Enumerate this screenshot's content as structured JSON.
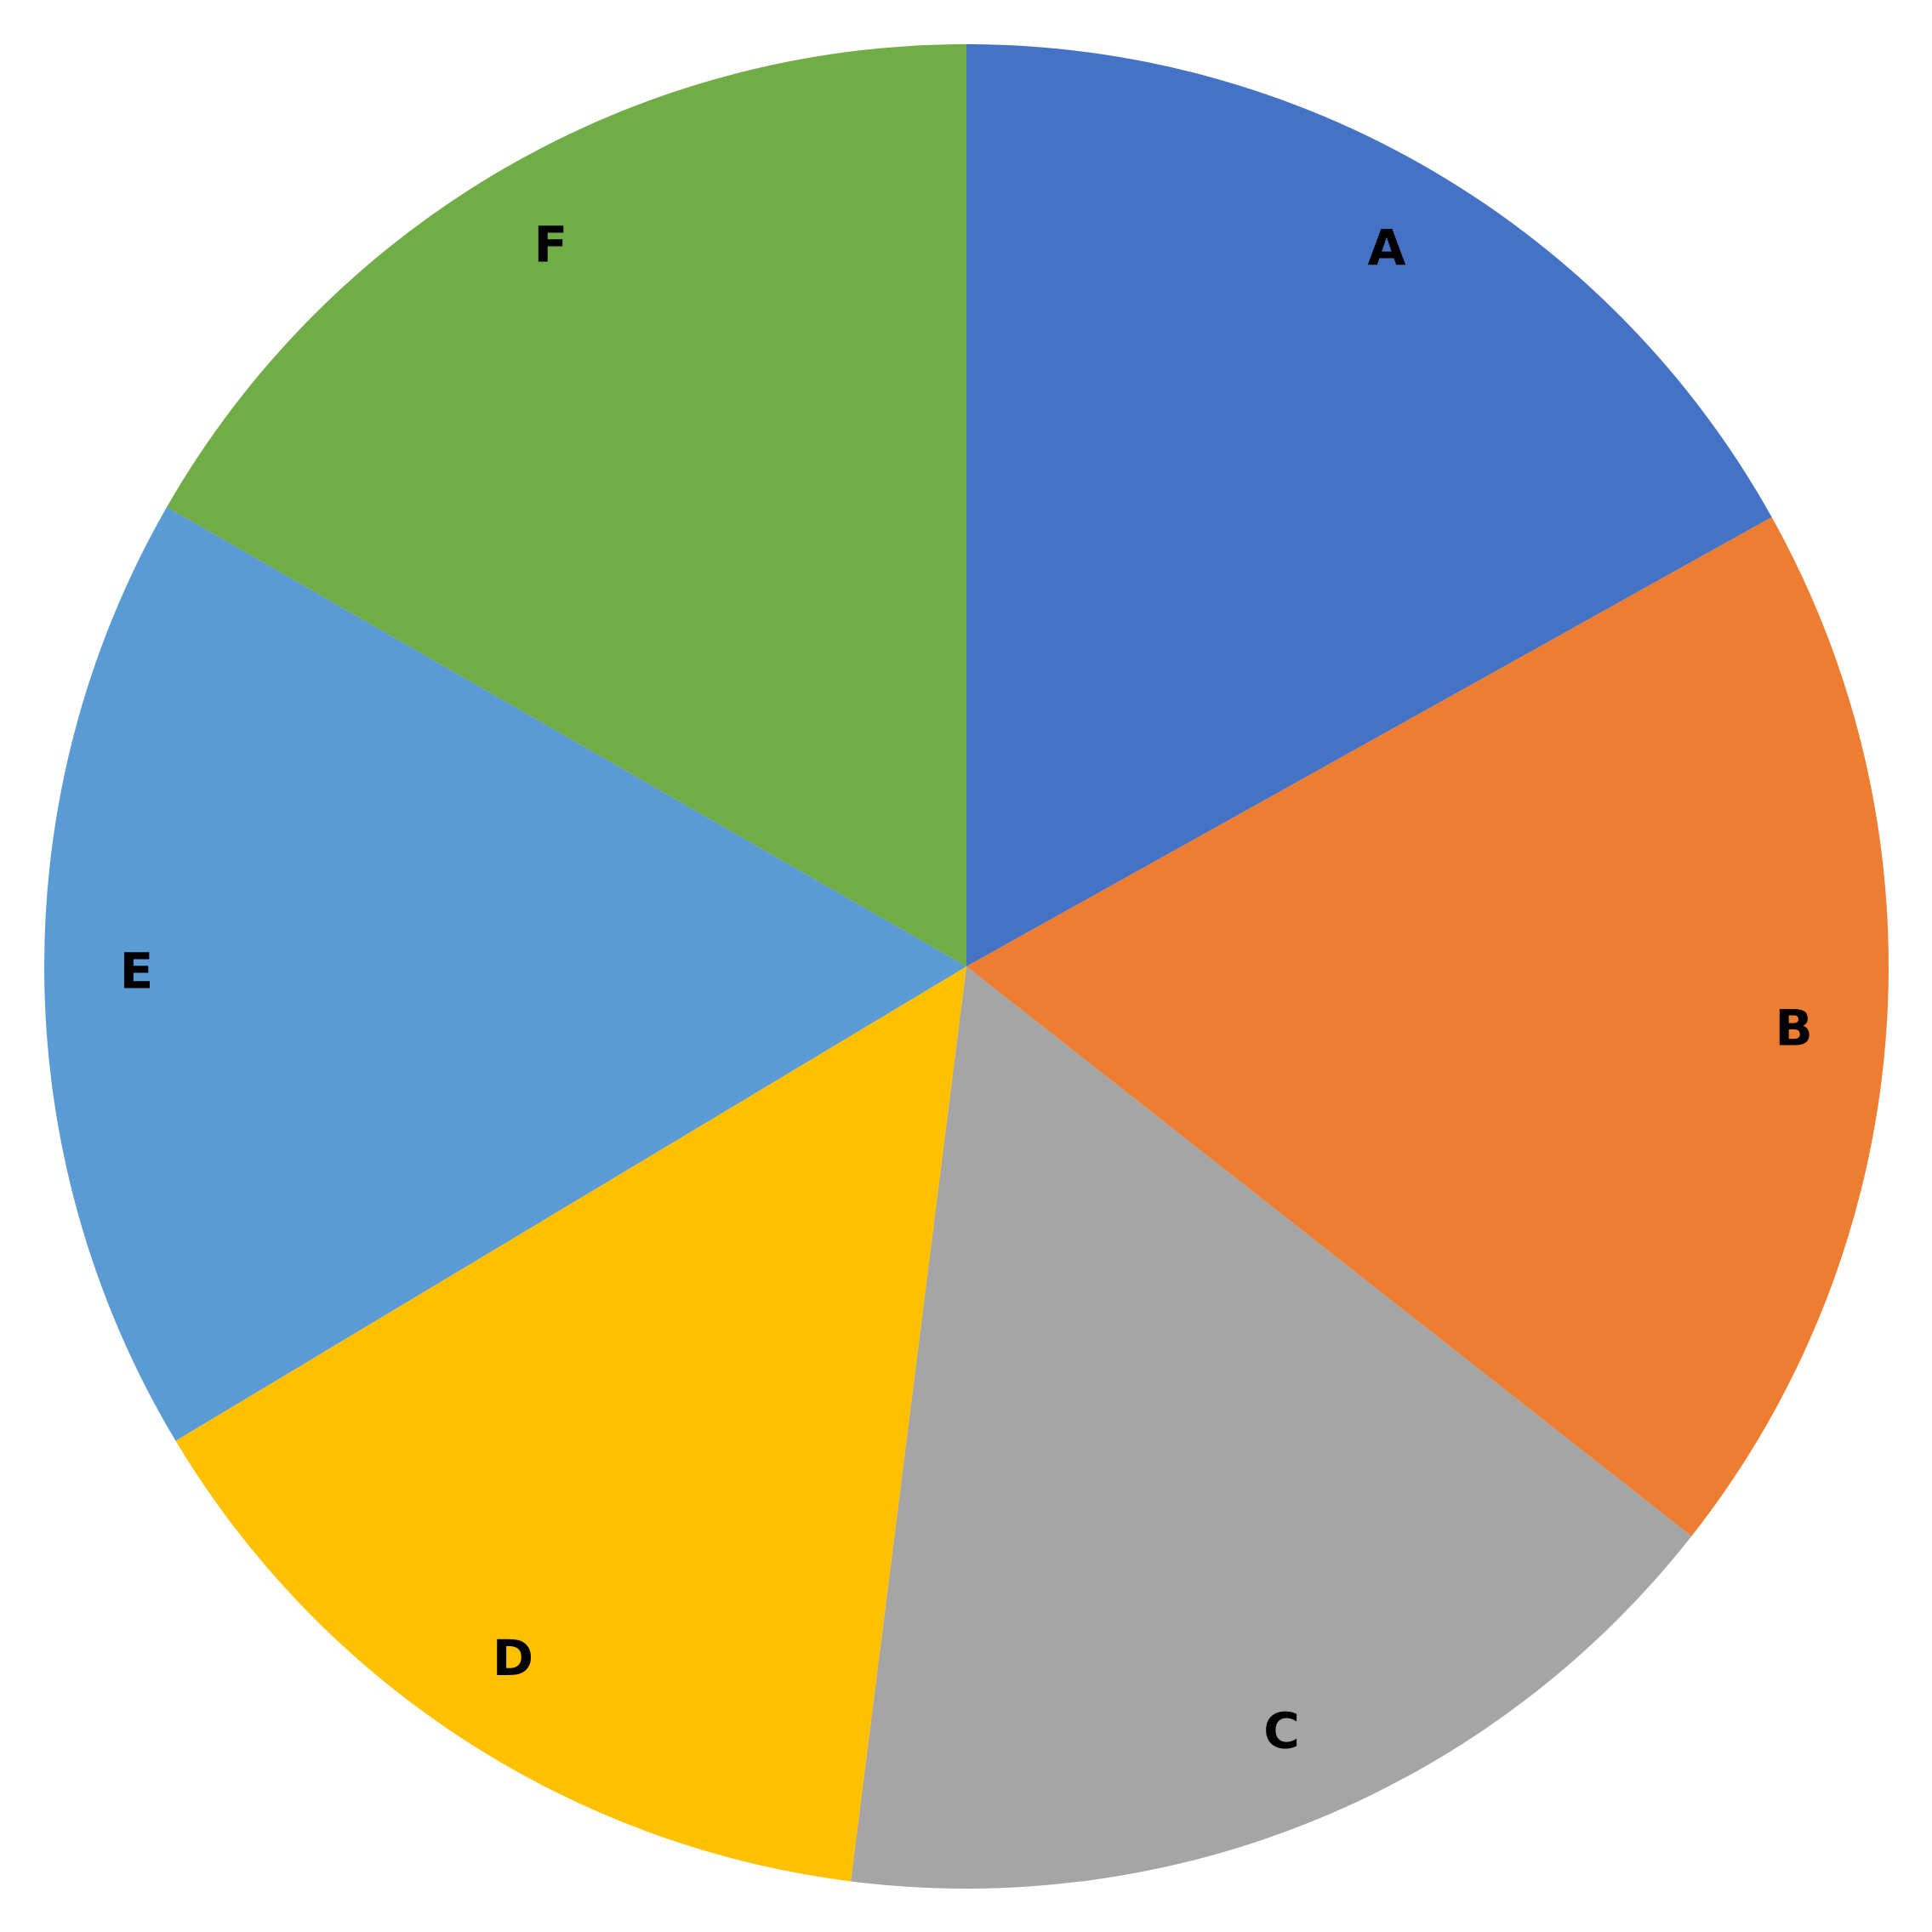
{
  "chart_data": {
    "type": "pie",
    "categories": [
      "A",
      "B",
      "C",
      "D",
      "E",
      "F"
    ],
    "values": [
      16.9,
      18.7,
      16.4,
      14.4,
      16.9,
      16.7
    ],
    "colors": [
      "#4472c4",
      "#ed7d31",
      "#a5a5a5",
      "#ffc000",
      "#5b9bd5",
      "#70ad47"
    ]
  }
}
